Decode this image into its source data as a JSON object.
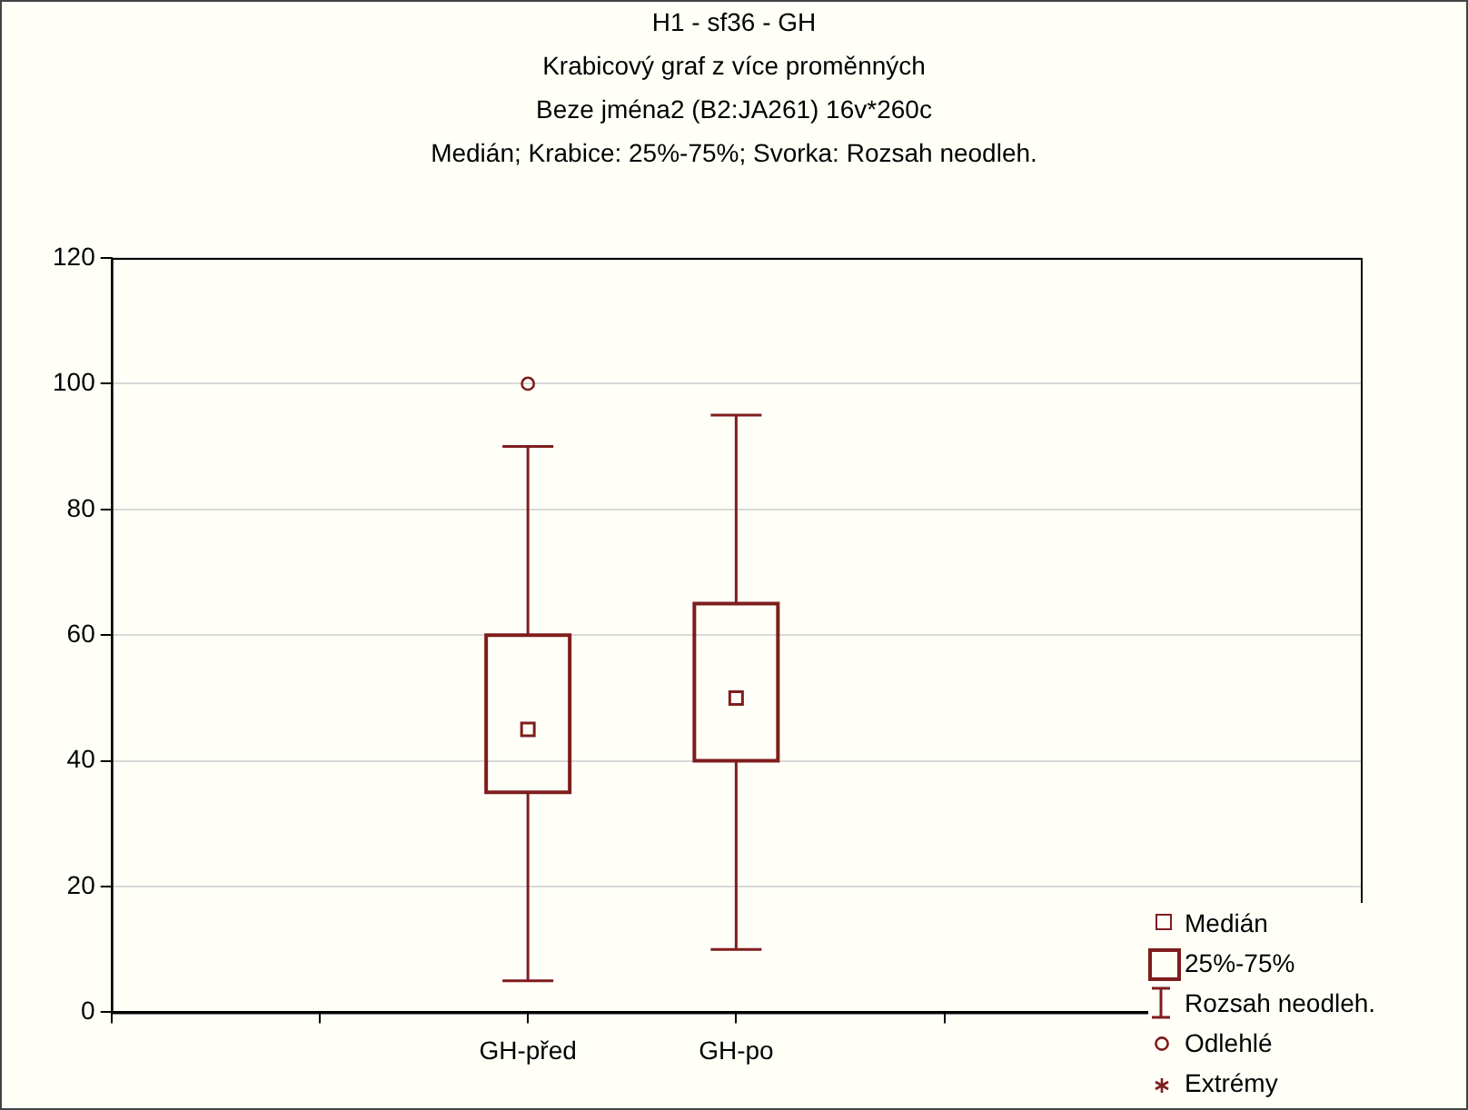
{
  "chart_data": {
    "type": "box",
    "title": "H1 - sf36 - GH",
    "subtitle": "Krabicový graf z více proměnných",
    "annotations": [
      "Beze jména2 (B2:JA261) 16v*260c",
      "Medián; Krabice: 25%-75%; Svorka: Rozsah neodleh.",
      "Medián",
      "25%-75%",
      "Rozsah neodleh.",
      "Odlehlé",
      "Extrémy"
    ],
    "categories": [
      null,
      null,
      "GH-před",
      "GH-po",
      null,
      null,
      null
    ],
    "boxes": [
      null,
      null,
      {
        "low": 5,
        "q1": 35,
        "median": 45,
        "q3": 60,
        "high": 90,
        "outliers": [
          100
        ]
      },
      {
        "low": 10,
        "q1": 40,
        "median": 50,
        "q3": 65,
        "high": 95
      },
      null,
      null,
      null
    ],
    "color": "#7f1d1d",
    "ylim": [
      0,
      120
    ],
    "yticks": [
      0,
      20,
      40,
      60,
      80,
      100,
      120
    ],
    "grid": "y",
    "marker": "square"
  }
}
